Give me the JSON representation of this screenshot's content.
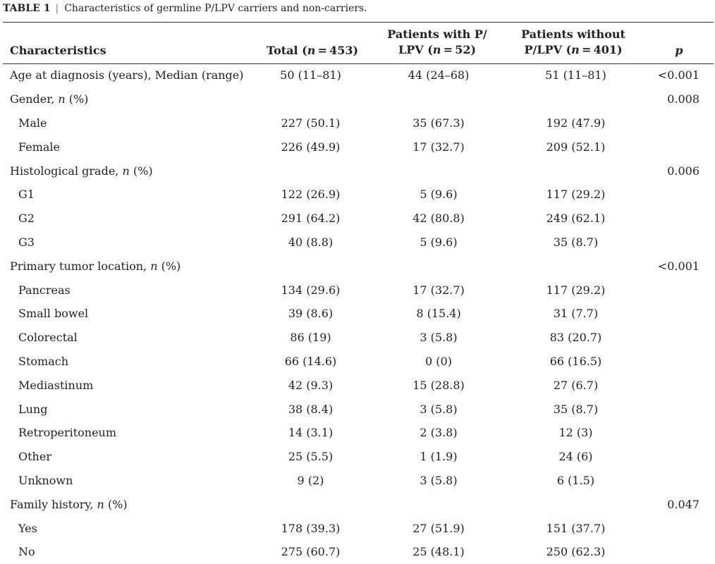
{
  "caption": {
    "label": "TABLE 1",
    "separator": "|",
    "text": "Characteristics of germline P/LPV carriers and non-carriers."
  },
  "header": {
    "characteristics": "Characteristics",
    "total": {
      "prefix": "Total (",
      "n": "n",
      "suffix": " = 453)"
    },
    "with_carriers": {
      "line1": "Patients with P/",
      "prefix": "LPV (",
      "n": "n",
      "suffix": " = 52)"
    },
    "without_carriers": {
      "line1": "Patients without",
      "prefix": "P/LPV (",
      "n": "n",
      "suffix": " = 401)"
    },
    "p": "p"
  },
  "rows": [
    {
      "label": "Age at diagnosis (years), Median (range)",
      "label_n": "",
      "label_tail": "",
      "total": "50 (11–81)",
      "with": "44 (24–68)",
      "without": "51 (11–81)",
      "p": "<0.001"
    },
    {
      "label": "Gender, ",
      "label_n": "n",
      "label_tail": " (%)",
      "total": "",
      "with": "",
      "without": "",
      "p": "0.008"
    },
    {
      "label": "Male",
      "label_n": "",
      "label_tail": "",
      "total": "227 (50.1)",
      "with": "35 (67.3)",
      "without": "192 (47.9)",
      "p": ""
    },
    {
      "label": "Female",
      "label_n": "",
      "label_tail": "",
      "total": "226 (49.9)",
      "with": "17 (32.7)",
      "without": "209 (52.1)",
      "p": ""
    },
    {
      "label": "Histological grade, ",
      "label_n": "n",
      "label_tail": " (%)",
      "total": "",
      "with": "",
      "without": "",
      "p": "0.006"
    },
    {
      "label": "G1",
      "label_n": "",
      "label_tail": "",
      "total": "122 (26.9)",
      "with": "5 (9.6)",
      "without": "117 (29.2)",
      "p": ""
    },
    {
      "label": "G2",
      "label_n": "",
      "label_tail": "",
      "total": "291 (64.2)",
      "with": "42 (80.8)",
      "without": "249 (62.1)",
      "p": ""
    },
    {
      "label": "G3",
      "label_n": "",
      "label_tail": "",
      "total": "40 (8.8)",
      "with": "5 (9.6)",
      "without": "35 (8.7)",
      "p": ""
    },
    {
      "label": "Primary tumor location, ",
      "label_n": "n",
      "label_tail": " (%)",
      "total": "",
      "with": "",
      "without": "",
      "p": "<0.001"
    },
    {
      "label": "Pancreas",
      "label_n": "",
      "label_tail": "",
      "total": "134 (29.6)",
      "with": "17 (32.7)",
      "without": "117 (29.2)",
      "p": ""
    },
    {
      "label": "Small bowel",
      "label_n": "",
      "label_tail": "",
      "total": "39 (8.6)",
      "with": "8 (15.4)",
      "without": "31 (7.7)",
      "p": ""
    },
    {
      "label": "Colorectal",
      "label_n": "",
      "label_tail": "",
      "total": "86 (19)",
      "with": "3 (5.8)",
      "without": "83 (20.7)",
      "p": ""
    },
    {
      "label": "Stomach",
      "label_n": "",
      "label_tail": "",
      "total": "66 (14.6)",
      "with": "0 (0)",
      "without": "66 (16.5)",
      "p": ""
    },
    {
      "label": "Mediastinum",
      "label_n": "",
      "label_tail": "",
      "total": "42 (9.3)",
      "with": "15 (28.8)",
      "without": "27 (6.7)",
      "p": ""
    },
    {
      "label": "Lung",
      "label_n": "",
      "label_tail": "",
      "total": "38 (8.4)",
      "with": "3 (5.8)",
      "without": "35 (8.7)",
      "p": ""
    },
    {
      "label": "Retroperitoneum",
      "label_n": "",
      "label_tail": "",
      "total": "14 (3.1)",
      "with": "2 (3.8)",
      "without": "12 (3)",
      "p": ""
    },
    {
      "label": "Other",
      "label_n": "",
      "label_tail": "",
      "total": "25 (5.5)",
      "with": "1 (1.9)",
      "without": "24 (6)",
      "p": ""
    },
    {
      "label": "Unknown",
      "label_n": "",
      "label_tail": "",
      "total": "9 (2)",
      "with": "3 (5.8)",
      "without": "6 (1.5)",
      "p": ""
    },
    {
      "label": "Family history, ",
      "label_n": "n",
      "label_tail": " (%)",
      "total": "",
      "with": "",
      "without": "",
      "p": "0.047"
    },
    {
      "label": "Yes",
      "label_n": "",
      "label_tail": "",
      "total": "178 (39.3)",
      "with": "27 (51.9)",
      "without": "151 (37.7)",
      "p": ""
    },
    {
      "label": "No",
      "label_n": "",
      "label_tail": "",
      "total": "275 (60.7)",
      "with": "25 (48.1)",
      "without": "250 (62.3)",
      "p": ""
    }
  ]
}
